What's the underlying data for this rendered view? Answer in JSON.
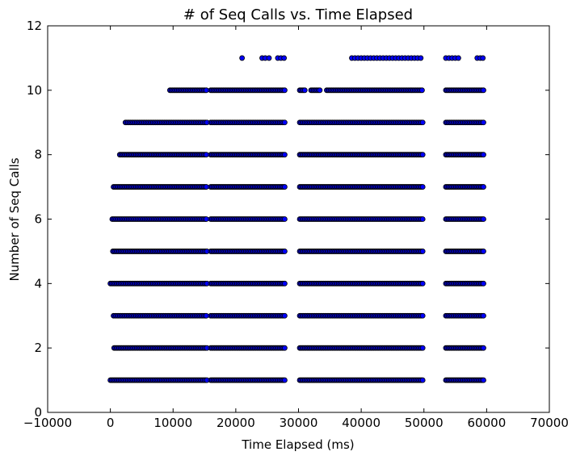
{
  "chart_data": {
    "type": "scatter",
    "title": "# of Seq Calls vs. Time Elapsed",
    "xlabel": "Time Elapsed (ms)",
    "ylabel": "Number of Seq Calls",
    "xlim": [
      -10000,
      70000
    ],
    "ylim": [
      0,
      12
    ],
    "xticks": [
      -10000,
      0,
      10000,
      20000,
      30000,
      40000,
      50000,
      60000,
      70000
    ],
    "yticks": [
      0,
      2,
      4,
      6,
      8,
      10,
      12
    ],
    "xtick_labels": [
      "−10000",
      "0",
      "10000",
      "20000",
      "30000",
      "40000",
      "50000",
      "60000",
      "70000"
    ],
    "ytick_labels": [
      "0",
      "2",
      "4",
      "6",
      "8",
      "10",
      "12"
    ],
    "grid": false,
    "marker_face_color": "#0000ff",
    "marker_edge_color": "#000000",
    "series": [
      {
        "points_by_level": [
          {
            "y": 1,
            "clusters": [
              [
                0,
                15400
              ],
              [
                16000,
                27800
              ],
              [
                30200,
                49800
              ],
              [
                53500,
                59500
              ]
            ]
          },
          {
            "y": 2,
            "clusters": [
              [
                600,
                15400
              ],
              [
                16000,
                27800
              ],
              [
                30200,
                49800
              ],
              [
                53500,
                59500
              ]
            ]
          },
          {
            "y": 3,
            "clusters": [
              [
                500,
                15400
              ],
              [
                16000,
                27800
              ],
              [
                30200,
                49800
              ],
              [
                53500,
                59500
              ]
            ]
          },
          {
            "y": 4,
            "clusters": [
              [
                0,
                15400
              ],
              [
                16000,
                27800
              ],
              [
                30200,
                49800
              ],
              [
                53500,
                59500
              ]
            ]
          },
          {
            "y": 5,
            "clusters": [
              [
                400,
                15400
              ],
              [
                16000,
                27800
              ],
              [
                30200,
                49800
              ],
              [
                53500,
                59500
              ]
            ]
          },
          {
            "y": 6,
            "clusters": [
              [
                300,
                15400
              ],
              [
                16000,
                27800
              ],
              [
                30200,
                49800
              ],
              [
                53500,
                59500
              ]
            ]
          },
          {
            "y": 7,
            "clusters": [
              [
                500,
                15400
              ],
              [
                16000,
                27800
              ],
              [
                30200,
                49800
              ],
              [
                53500,
                59500
              ]
            ]
          },
          {
            "y": 8,
            "clusters": [
              [
                1500,
                15400
              ],
              [
                16000,
                27800
              ],
              [
                30200,
                49800
              ],
              [
                53500,
                59500
              ]
            ]
          },
          {
            "y": 9,
            "clusters": [
              [
                2400,
                15400
              ],
              [
                16000,
                27800
              ],
              [
                30200,
                49800
              ],
              [
                53500,
                59500
              ]
            ]
          },
          {
            "y": 10,
            "clusters": [
              [
                9500,
                15400
              ],
              [
                16000,
                27800
              ],
              [
                30200,
                31000
              ],
              [
                32000,
                33500
              ],
              [
                34500,
                49800
              ],
              [
                53500,
                59500
              ]
            ]
          },
          {
            "y": 11,
            "points": [
              21000,
              24200,
              24700,
              25300,
              26700,
              27200,
              27700,
              38500,
              39000,
              39500,
              40000,
              40500,
              41000,
              41500,
              42000,
              42500,
              43000,
              43500,
              44000,
              44500,
              45000,
              45500,
              46000,
              46500,
              47000,
              47500,
              48000,
              48500,
              49000,
              49500,
              53500,
              54000,
              54500,
              55000,
              55500,
              58500,
              59000,
              59400
            ]
          }
        ]
      }
    ]
  }
}
